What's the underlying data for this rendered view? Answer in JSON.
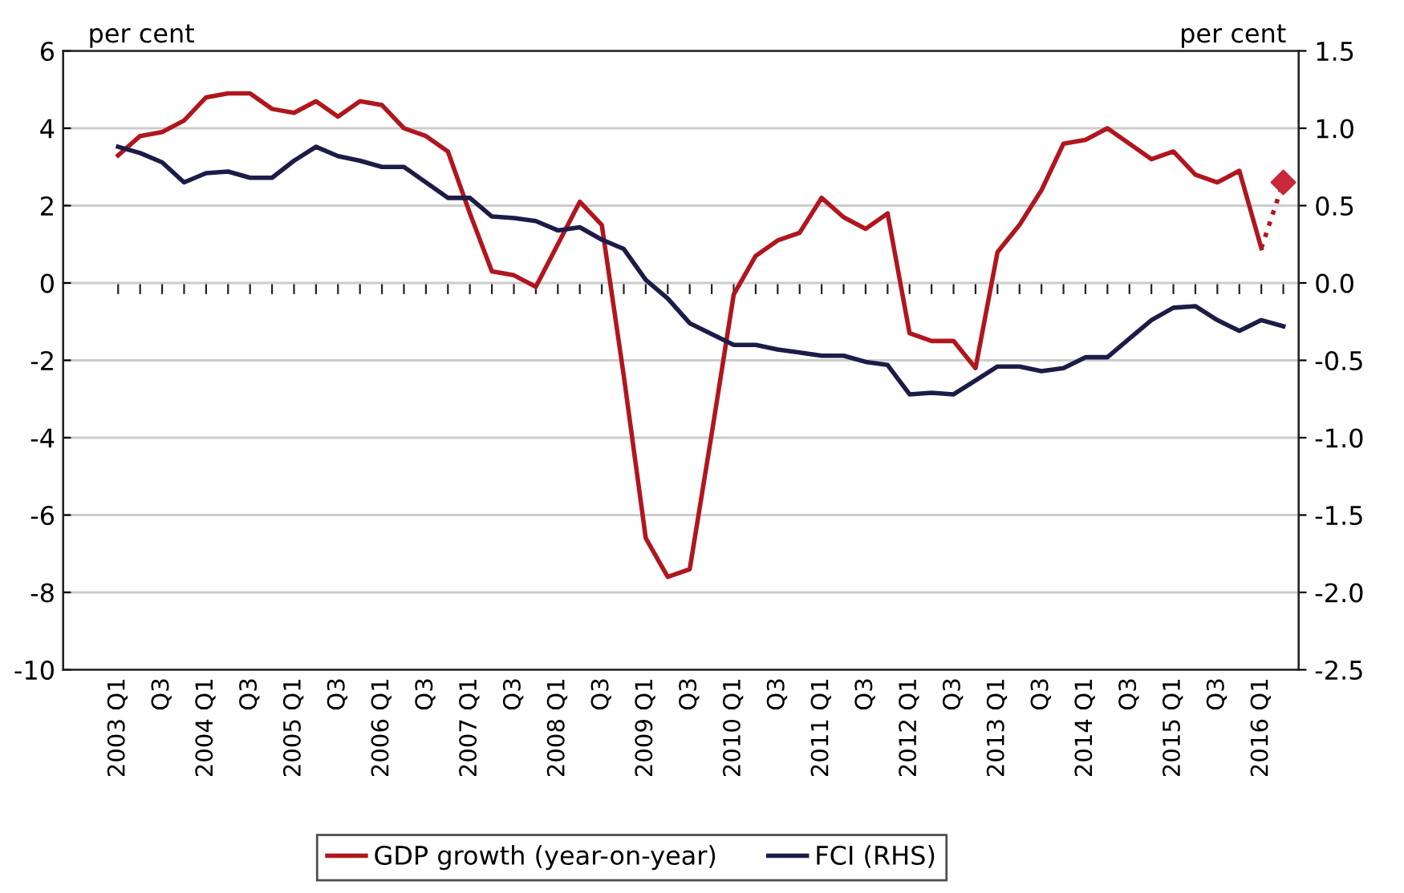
{
  "chart_data": {
    "type": "line",
    "ylabel": "per cent",
    "y2label": "per cent",
    "categories": [
      "2003 Q1",
      null,
      "Q3",
      null,
      "2004 Q1",
      null,
      "Q3",
      null,
      "2005 Q1",
      null,
      "Q3",
      null,
      "2006 Q1",
      null,
      "Q3",
      null,
      "2007 Q1",
      null,
      "Q3",
      null,
      "2008 Q1",
      null,
      "Q3",
      null,
      "2009 Q1",
      null,
      "Q3",
      null,
      "2010 Q1",
      null,
      "Q3",
      null,
      "2011 Q1",
      null,
      "Q3",
      null,
      "2012 Q1",
      null,
      "Q3",
      null,
      "2013 Q1",
      null,
      "Q3",
      null,
      "2014 Q1",
      null,
      "Q3",
      null,
      "2015 Q1",
      null,
      "Q3",
      null,
      "2016 Q1",
      null
    ],
    "series": [
      {
        "name": "GDP growth (year-on-year)",
        "color": "#b0161e",
        "line_style": "solid",
        "values": [
          3.3,
          3.8,
          3.9,
          4.2,
          4.8,
          4.9,
          4.9,
          4.5,
          4.4,
          4.7,
          4.3,
          4.7,
          4.6,
          4.0,
          3.8,
          3.4,
          1.8,
          0.3,
          0.2,
          -0.1,
          1.0,
          2.1,
          1.5,
          -2.4,
          -6.6,
          -7.6,
          -7.4,
          -3.9,
          -0.3,
          0.7,
          1.1,
          1.3,
          2.2,
          1.7,
          1.4,
          1.8,
          -1.3,
          -1.5,
          -1.5,
          -2.2,
          0.8,
          1.5,
          2.4,
          3.6,
          3.7,
          4.0,
          3.6,
          3.2,
          3.4,
          2.8,
          2.6,
          2.9,
          0.9,
          null
        ]
      },
      {
        "color": "#b0161e",
        "line_style": "dotted",
        "values": [
          null,
          null,
          null,
          null,
          null,
          null,
          null,
          null,
          null,
          null,
          null,
          null,
          null,
          null,
          null,
          null,
          null,
          null,
          null,
          null,
          null,
          null,
          null,
          null,
          null,
          null,
          null,
          null,
          null,
          null,
          null,
          null,
          null,
          null,
          null,
          null,
          null,
          null,
          null,
          null,
          null,
          null,
          null,
          null,
          null,
          null,
          null,
          null,
          null,
          null,
          null,
          null,
          0.9,
          2.6
        ]
      },
      {
        "type": "scatter",
        "marker": "diamond",
        "color": "#c8283a",
        "values": [
          null,
          null,
          null,
          null,
          null,
          null,
          null,
          null,
          null,
          null,
          null,
          null,
          null,
          null,
          null,
          null,
          null,
          null,
          null,
          null,
          null,
          null,
          null,
          null,
          null,
          null,
          null,
          null,
          null,
          null,
          null,
          null,
          null,
          null,
          null,
          null,
          null,
          null,
          null,
          null,
          null,
          null,
          null,
          null,
          null,
          null,
          null,
          null,
          null,
          null,
          null,
          null,
          null,
          2.6
        ]
      },
      {
        "name": "FCI (RHS)",
        "color": "#1c1c48",
        "axis": "y2",
        "line_style": "solid",
        "values": [
          0.88,
          0.84,
          0.78,
          0.65,
          0.71,
          0.72,
          0.68,
          0.68,
          0.79,
          0.88,
          0.82,
          0.79,
          0.75,
          0.75,
          0.65,
          0.55,
          0.55,
          0.43,
          0.42,
          0.4,
          0.34,
          0.36,
          0.28,
          0.22,
          0.02,
          -0.1,
          -0.26,
          -0.33,
          -0.4,
          -0.4,
          -0.43,
          -0.45,
          -0.47,
          -0.47,
          -0.51,
          -0.53,
          -0.72,
          -0.71,
          -0.72,
          -0.63,
          -0.54,
          -0.54,
          -0.57,
          -0.55,
          -0.48,
          -0.48,
          -0.36,
          -0.24,
          -0.16,
          -0.15,
          -0.24,
          -0.31,
          -0.24,
          -0.28
        ]
      }
    ],
    "ylim": [
      -10,
      6
    ],
    "yticks": [
      -10,
      -8,
      -6,
      -4,
      -2,
      0,
      2,
      4,
      6
    ],
    "y2lim": [
      -2.5,
      1.5
    ],
    "y2ticks": [
      {
        "value": -2.5,
        "label": "-2.5"
      },
      {
        "value": -2.0,
        "label": "-2.0"
      },
      {
        "value": -1.5,
        "label": "-1.5"
      },
      {
        "value": -1.0,
        "label": "-1.0"
      },
      {
        "value": -0.5,
        "label": "-0.5"
      },
      {
        "value": 0,
        "label": "0.0"
      },
      {
        "value": 0.5,
        "label": "0.5"
      },
      {
        "value": 1.0,
        "label": "1.0"
      },
      {
        "value": 1.5,
        "label": "1.5"
      }
    ],
    "grid": "y",
    "legend": "bottom"
  }
}
